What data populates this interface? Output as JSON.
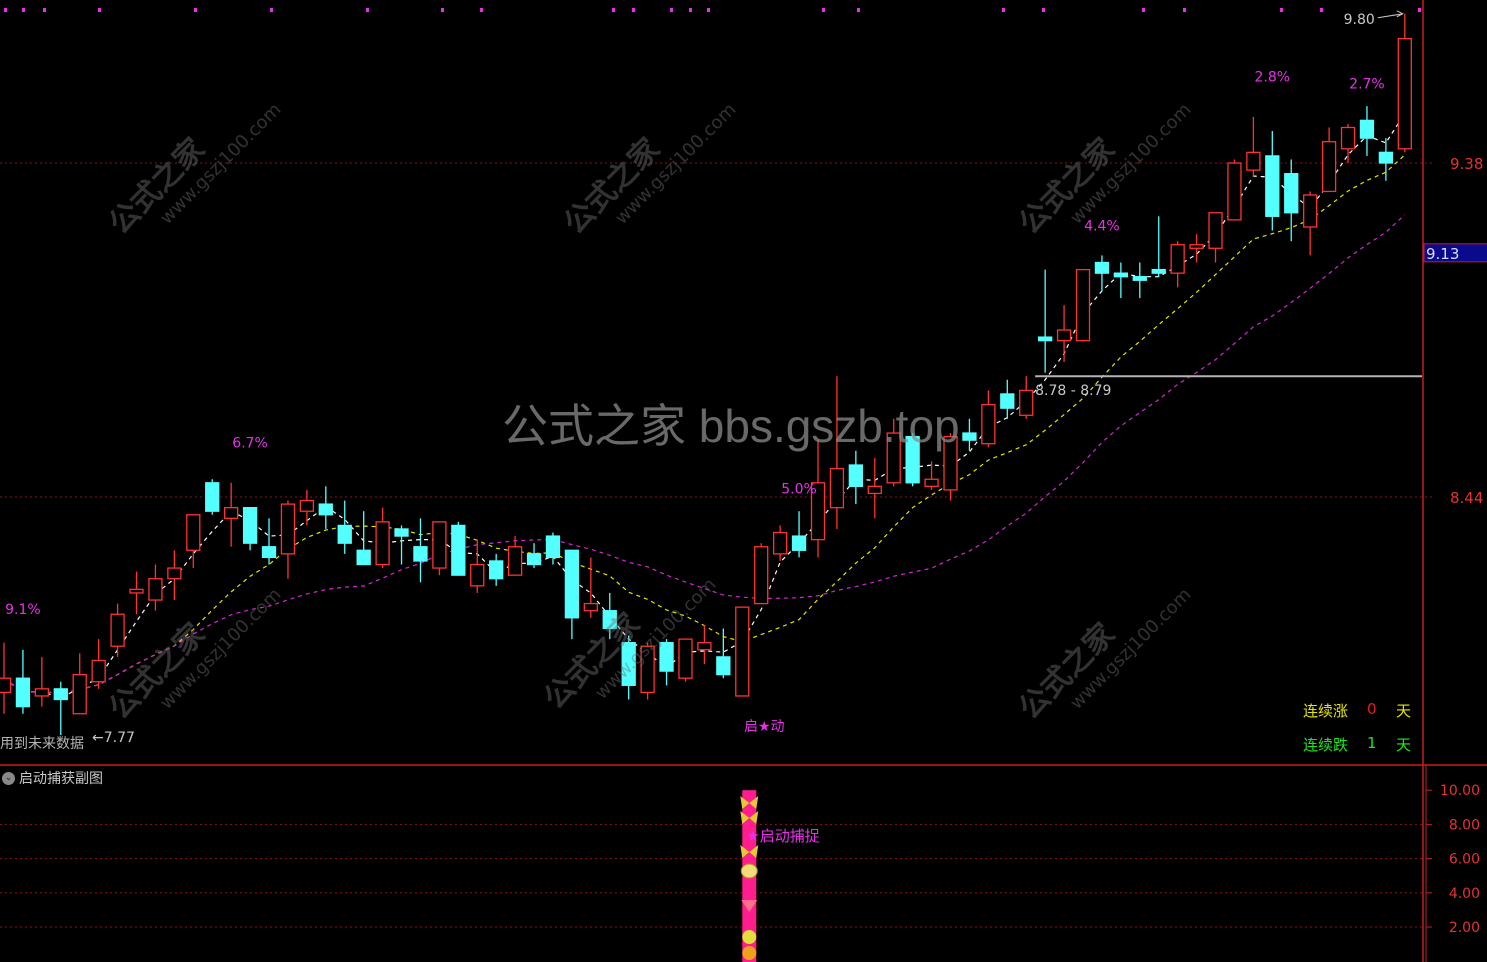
{
  "chart_data": {
    "type": "candlestick",
    "ohlc_order": [
      "open",
      "high",
      "low",
      "close"
    ],
    "candles": [
      [
        7.89,
        8.03,
        7.83,
        7.93
      ],
      [
        7.93,
        8.01,
        7.83,
        7.85
      ],
      [
        7.88,
        7.99,
        7.85,
        7.9
      ],
      [
        7.9,
        7.92,
        7.77,
        7.87
      ],
      [
        7.83,
        8.0,
        7.83,
        7.94
      ],
      [
        7.92,
        8.04,
        7.9,
        7.98
      ],
      [
        8.02,
        8.14,
        7.99,
        8.11
      ],
      [
        8.17,
        8.23,
        8.11,
        8.18
      ],
      [
        8.15,
        8.25,
        8.12,
        8.21
      ],
      [
        8.21,
        8.29,
        8.15,
        8.24
      ],
      [
        8.29,
        8.39,
        8.24,
        8.39
      ],
      [
        8.48,
        8.49,
        8.39,
        8.4
      ],
      [
        8.38,
        8.48,
        8.3,
        8.41
      ],
      [
        8.41,
        8.41,
        8.29,
        8.31
      ],
      [
        8.3,
        8.38,
        8.25,
        8.27
      ],
      [
        8.28,
        8.43,
        8.21,
        8.42
      ],
      [
        8.4,
        8.46,
        8.36,
        8.43
      ],
      [
        8.42,
        8.47,
        8.35,
        8.39
      ],
      [
        8.36,
        8.43,
        8.28,
        8.31
      ],
      [
        8.29,
        8.4,
        8.25,
        8.25
      ],
      [
        8.25,
        8.41,
        8.24,
        8.37
      ],
      [
        8.35,
        8.36,
        8.25,
        8.33
      ],
      [
        8.3,
        8.38,
        8.2,
        8.26
      ],
      [
        8.24,
        8.37,
        8.22,
        8.37
      ],
      [
        8.36,
        8.37,
        8.22,
        8.22
      ],
      [
        8.19,
        8.32,
        8.17,
        8.25
      ],
      [
        8.26,
        8.28,
        8.19,
        8.21
      ],
      [
        8.22,
        8.33,
        8.22,
        8.3
      ],
      [
        8.28,
        8.31,
        8.24,
        8.25
      ],
      [
        8.33,
        8.34,
        8.25,
        8.27
      ],
      [
        8.29,
        8.29,
        8.04,
        8.1
      ],
      [
        8.12,
        8.27,
        8.1,
        8.14
      ],
      [
        8.12,
        8.17,
        8.04,
        8.07
      ],
      [
        8.03,
        8.05,
        7.87,
        7.91
      ],
      [
        7.89,
        8.03,
        7.87,
        8.02
      ],
      [
        8.03,
        8.04,
        7.91,
        7.95
      ],
      [
        7.93,
        8.04,
        7.92,
        8.04
      ],
      [
        8.01,
        8.08,
        7.97,
        8.03
      ],
      [
        7.99,
        8.07,
        7.93,
        7.94
      ],
      [
        7.88,
        8.13,
        7.88,
        8.13
      ],
      [
        8.14,
        8.31,
        8.14,
        8.3
      ],
      [
        8.28,
        8.36,
        8.26,
        8.34
      ],
      [
        8.33,
        8.4,
        8.27,
        8.29
      ],
      [
        8.32,
        8.6,
        8.27,
        8.48
      ],
      [
        8.41,
        8.78,
        8.35,
        8.52
      ],
      [
        8.53,
        8.57,
        8.42,
        8.47
      ],
      [
        8.45,
        8.55,
        8.38,
        8.47
      ],
      [
        8.48,
        8.66,
        8.47,
        8.62
      ],
      [
        8.61,
        8.62,
        8.47,
        8.48
      ],
      [
        8.47,
        8.54,
        8.46,
        8.49
      ],
      [
        8.46,
        8.62,
        8.43,
        8.61
      ],
      [
        8.62,
        8.66,
        8.57,
        8.6
      ],
      [
        8.59,
        8.74,
        8.58,
        8.7
      ],
      [
        8.73,
        8.77,
        8.66,
        8.69
      ],
      [
        8.67,
        8.78,
        8.66,
        8.74
      ],
      [
        8.89,
        9.08,
        8.79,
        8.88
      ],
      [
        8.88,
        8.98,
        8.82,
        8.91
      ],
      [
        8.88,
        9.08,
        8.88,
        9.08
      ],
      [
        9.1,
        9.12,
        9.02,
        9.07
      ],
      [
        9.07,
        9.1,
        9.0,
        9.06
      ],
      [
        9.06,
        9.1,
        9.0,
        9.05
      ],
      [
        9.08,
        9.23,
        9.06,
        9.07
      ],
      [
        9.07,
        9.16,
        9.03,
        9.15
      ],
      [
        9.14,
        9.18,
        9.1,
        9.15
      ],
      [
        9.14,
        9.24,
        9.1,
        9.24
      ],
      [
        9.22,
        9.39,
        9.22,
        9.38
      ],
      [
        9.36,
        9.51,
        9.34,
        9.41
      ],
      [
        9.4,
        9.47,
        9.19,
        9.23
      ],
      [
        9.35,
        9.39,
        9.16,
        9.24
      ],
      [
        9.2,
        9.3,
        9.12,
        9.29
      ],
      [
        9.3,
        9.48,
        9.3,
        9.44
      ],
      [
        9.42,
        9.49,
        9.38,
        9.48
      ],
      [
        9.5,
        9.54,
        9.4,
        9.45
      ],
      [
        9.41,
        9.45,
        9.33,
        9.38
      ],
      [
        9.42,
        9.8,
        9.41,
        9.73
      ]
    ],
    "price_axis": {
      "ticks": [
        "9.38",
        "8.44"
      ],
      "ylim": [
        7.68,
        9.84
      ],
      "grid": "dotted"
    },
    "current_price": "9.13",
    "moving_averages": [
      {
        "color": "#ffffff",
        "style": "dashed"
      },
      {
        "color": "#e6e600",
        "style": "dashed"
      },
      {
        "color": "#d228d2",
        "style": "dashed"
      }
    ],
    "annotations": {
      "pct_labels": [
        {
          "text": "9.1%",
          "candle": 1,
          "price": 8.11
        },
        {
          "text": "6.7%",
          "candle": 13,
          "price": 8.58
        },
        {
          "text": "5.0%",
          "candle": 42,
          "price": 8.45
        },
        {
          "text": "4.4%",
          "candle": 58,
          "price": 9.19
        },
        {
          "text": "2.8%",
          "candle": 67,
          "price": 9.61
        },
        {
          "text": "2.7%",
          "candle": 72,
          "price": 9.59
        }
      ],
      "high_label": "9.80",
      "low_label": "7.77",
      "support_label": "8.78 - 8.79",
      "support_price": 8.78,
      "support_start_candle": 55,
      "start_signal": "启★动",
      "start_signal_candle": 39
    },
    "colors": {
      "up": "#ff3232",
      "down": "#54ffff",
      "pct": "#e632e6",
      "axis": "#c81e1e"
    }
  },
  "overlay": {
    "future_warning": "用到未来数据",
    "counters": {
      "up_label": "连续涨",
      "up_value": "0",
      "up_unit": "天",
      "down_label": "连续跌",
      "down_value": "1",
      "down_unit": "天"
    }
  },
  "watermarks": {
    "center": "公式之家 bbs.gszb.top",
    "diag_title": "公式之家",
    "diag_url": "www.gszj100.com"
  },
  "sub_chart": {
    "title": "启动捕获副图",
    "yticks": [
      "10.00",
      "8.00",
      "6.00",
      "4.00",
      "2.00"
    ],
    "signal_candle": 39,
    "signal_value": 10,
    "signal_label": "★启动捕捉",
    "bar_color": "#ff1e8c"
  }
}
